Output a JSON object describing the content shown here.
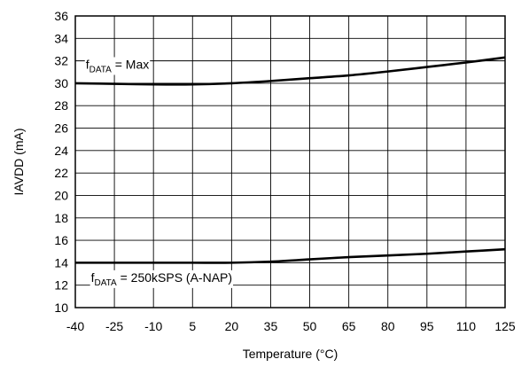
{
  "chart_data": {
    "type": "line",
    "xlabel": "Temperature (°C)",
    "ylabel": "IAVDD (mA)",
    "x_ticks": [
      "-40",
      "-25",
      "-10",
      "5",
      "20",
      "35",
      "50",
      "65",
      "80",
      "95",
      "110",
      "125"
    ],
    "y_ticks": [
      "10",
      "12",
      "14",
      "16",
      "18",
      "20",
      "22",
      "24",
      "26",
      "28",
      "30",
      "32",
      "34",
      "36"
    ],
    "xlim": [
      -40,
      125
    ],
    "ylim": [
      10,
      36
    ],
    "grid": true,
    "series": [
      {
        "color": "#000000",
        "x": [
          -40,
          -25,
          -10,
          5,
          20,
          35,
          50,
          65,
          80,
          95,
          110,
          125
        ],
        "y": [
          30.0,
          29.95,
          29.9,
          29.9,
          30.0,
          30.2,
          30.45,
          30.7,
          31.05,
          31.45,
          31.85,
          32.3
        ]
      },
      {
        "color": "#000000",
        "x": [
          -40,
          -25,
          -10,
          5,
          20,
          35,
          50,
          65,
          80,
          95,
          110,
          125
        ],
        "y": [
          14.0,
          14.0,
          14.0,
          14.0,
          14.0,
          14.1,
          14.3,
          14.5,
          14.65,
          14.8,
          15.0,
          15.2
        ]
      }
    ],
    "annotations": [
      {
        "base": "f",
        "sub": "DATA",
        "rest": " = Max",
        "x": -36,
        "y": 31.3
      },
      {
        "base": "f",
        "sub": "DATA",
        "rest": " = 250kSPS (A-NAP)",
        "x": -34,
        "y": 12.3
      }
    ]
  }
}
